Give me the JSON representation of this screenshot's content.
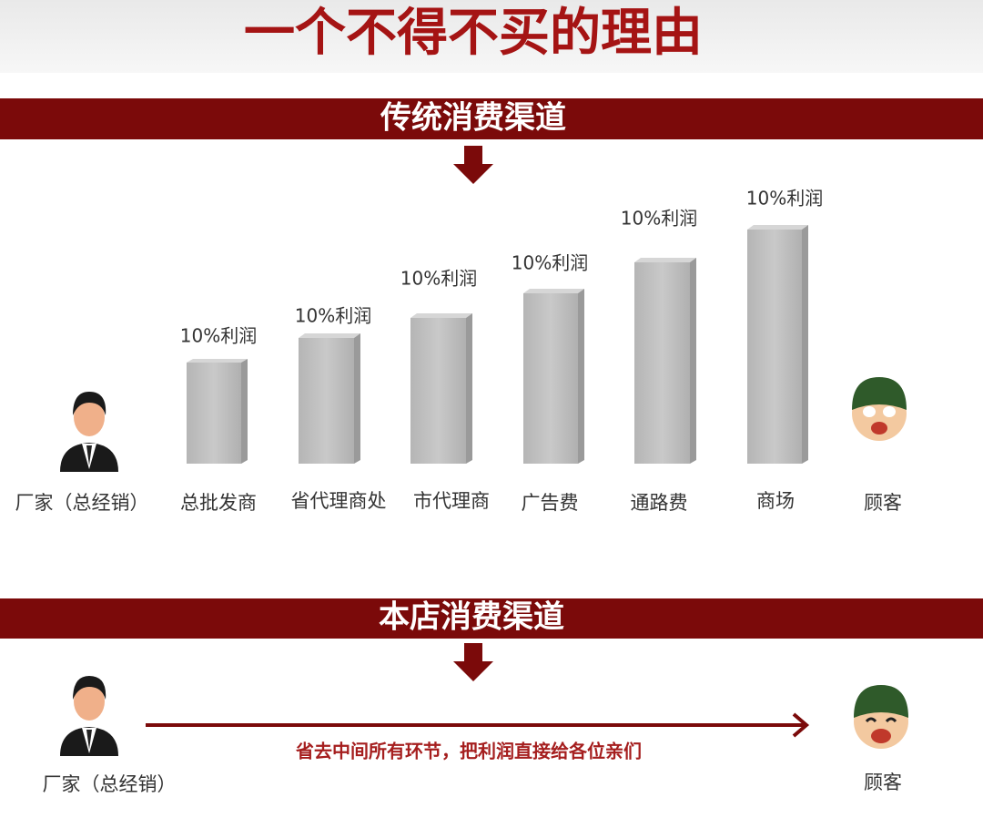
{
  "title": "一个不得不买的理由",
  "traditional": {
    "heading": "传统消费渠道",
    "margins": [
      "10%利润",
      "10%利润",
      "10%利润",
      "10%利润",
      "10%利润",
      "10%利润"
    ],
    "stages": [
      "厂家（总经销）",
      "总批发商",
      "省代理商处",
      "市代理商",
      "广告费",
      "通路费",
      "商场",
      "顾客"
    ]
  },
  "direct": {
    "heading": "本店消费渠道",
    "note": "省去中间所有环节，把利润直接给各位亲们",
    "from": "厂家（总经销）",
    "to": "顾客"
  }
}
